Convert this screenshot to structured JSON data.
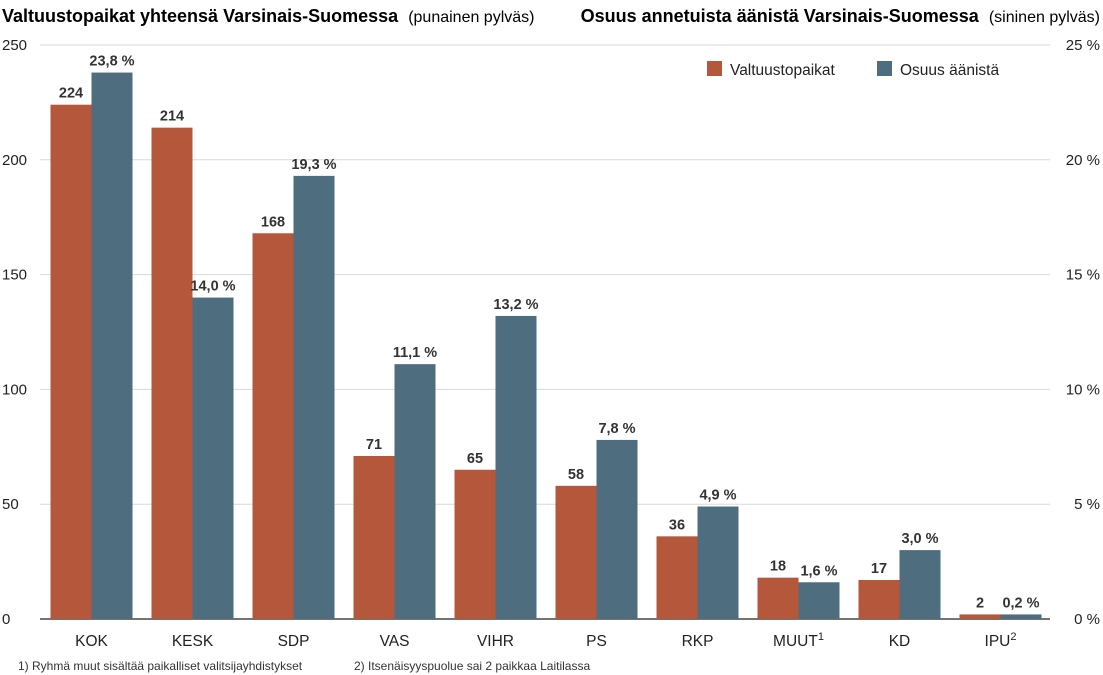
{
  "titles": {
    "left_bold": "Valtuustopaikat yhteensä Varsinais-Suomessa",
    "left_note": "(punainen pylväs)",
    "right_bold": "Osuus annetuista äänistä Varsinais-Suomessa",
    "right_note": "(sininen pylväs)"
  },
  "legend": {
    "seats": "Valtuustopaikat",
    "share": "Osuus äänistä"
  },
  "footnotes": {
    "note1": "1) Ryhmä muut sisältää paikalliset valitsijayhdistykset",
    "note2": "2) Itsenäisyyspuolue sai 2 paikkaa Laitilassa"
  },
  "colors": {
    "seats": "#b5573a",
    "share": "#4e6e80"
  },
  "chart_data": {
    "type": "bar",
    "categories": [
      "KOK",
      "KESK",
      "SDP",
      "VAS",
      "VIHR",
      "PS",
      "RKP",
      "MUUT",
      "KD",
      "IPU"
    ],
    "category_superscripts": [
      "",
      "",
      "",
      "",
      "",
      "",
      "",
      "1",
      "",
      "2"
    ],
    "series": [
      {
        "name": "Valtuustopaikat",
        "axis": "left",
        "values": [
          224,
          214,
          168,
          71,
          65,
          58,
          36,
          18,
          17,
          2
        ],
        "labels": [
          "224",
          "214",
          "168",
          "71",
          "65",
          "58",
          "36",
          "18",
          "17",
          "2"
        ]
      },
      {
        "name": "Osuus äänistä",
        "axis": "right",
        "values": [
          23.8,
          14.0,
          19.3,
          11.1,
          13.2,
          7.8,
          4.9,
          1.6,
          3.0,
          0.2
        ],
        "labels": [
          "23,8 %",
          "14,0 %",
          "19,3 %",
          "11,1 %",
          "13,2 %",
          "7,8 %",
          "4,9 %",
          "1,6 %",
          "3,0 %",
          "0,2 %"
        ]
      }
    ],
    "y_left": {
      "min": 0,
      "max": 250,
      "ticks": [
        "0",
        "50",
        "100",
        "150",
        "200",
        "250"
      ]
    },
    "y_right": {
      "min": 0,
      "max": 25,
      "ticks": [
        "0 %",
        "5 %",
        "10 %",
        "15 %",
        "20 %",
        "25 %"
      ]
    },
    "grid": true,
    "legend_position": "top-right"
  }
}
